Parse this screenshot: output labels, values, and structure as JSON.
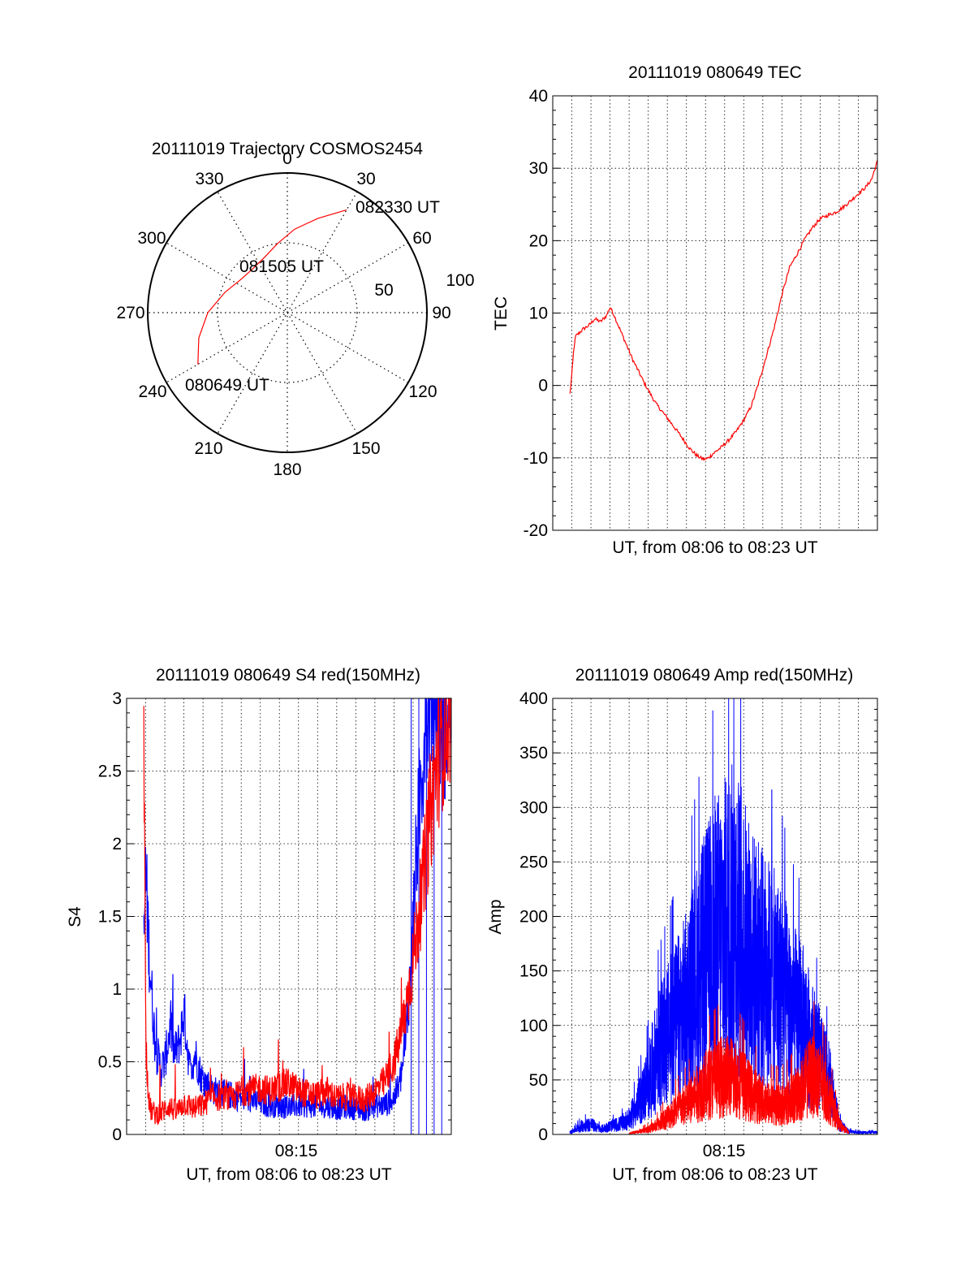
{
  "chart_data": [
    {
      "type": "polar",
      "title": "20111019 Trajectory COSMOS2454",
      "angle_labels": [
        "0",
        "30",
        "60",
        "90",
        "120",
        "150",
        "180",
        "210",
        "240",
        "270",
        "300",
        "330"
      ],
      "radial_labels": [
        "50",
        "100"
      ],
      "grid": true,
      "series": [
        {
          "color": "#ff0000",
          "points": [
            {
              "az": 240,
              "r": 74
            },
            {
              "az": 254,
              "r": 66
            },
            {
              "az": 270,
              "r": 57
            },
            {
              "az": 288,
              "r": 47
            },
            {
              "az": 305,
              "r": 41
            },
            {
              "az": 322,
              "r": 40
            },
            {
              "az": 338,
              "r": 43
            },
            {
              "az": 352,
              "r": 50
            },
            {
              "az": 5,
              "r": 60
            },
            {
              "az": 18,
              "r": 71
            },
            {
              "az": 30,
              "r": 85
            }
          ]
        }
      ],
      "annotations": [
        {
          "text": "082330 UT",
          "az": 30,
          "r": 85
        },
        {
          "text": "081505 UT",
          "az": 322,
          "r": 40
        },
        {
          "text": "080649 UT",
          "az": 240,
          "r": 74
        }
      ]
    },
    {
      "type": "line",
      "title": "20111019 080649 TEC",
      "xlabel": "UT, from 08:06 to 08:23 UT",
      "ylabel": "TEC",
      "xlim_minutes": [
        8.0,
        25.0
      ],
      "ylim": [
        -20,
        40
      ],
      "yticks": [
        -20,
        -10,
        0,
        10,
        20,
        30,
        40
      ],
      "grid": true,
      "series": [
        {
          "color": "#ff0000",
          "x_minutes": [
            8.9,
            9.0,
            9.1,
            9.2,
            9.4,
            9.6,
            9.9,
            10.2,
            10.5,
            10.8,
            11.0,
            11.2,
            11.4,
            11.8,
            12.2,
            12.8,
            13.4,
            14.0,
            14.6,
            15.2,
            15.6,
            15.9,
            16.1,
            16.4,
            16.8,
            17.2,
            17.6,
            18.0,
            18.4,
            18.8,
            19.2,
            19.6,
            20.0,
            20.4,
            20.8,
            21.2,
            21.6,
            22.0,
            22.4,
            22.8,
            23.2,
            23.6,
            24.0,
            24.4,
            24.7,
            25.0
          ],
          "values": [
            -1.2,
            1.5,
            5.0,
            6.8,
            7.3,
            7.8,
            8.3,
            9.2,
            8.8,
            9.6,
            10.8,
            9.8,
            8.5,
            6.0,
            3.5,
            0.3,
            -2.5,
            -4.5,
            -6.6,
            -8.8,
            -9.8,
            -10.2,
            -10.1,
            -9.4,
            -8.6,
            -7.6,
            -6.4,
            -4.8,
            -2.8,
            0.5,
            4.2,
            8.0,
            12.5,
            16.3,
            18.2,
            20.2,
            21.8,
            23.0,
            23.5,
            23.9,
            24.6,
            25.5,
            26.5,
            27.4,
            28.5,
            31.0
          ]
        }
      ]
    },
    {
      "type": "line",
      "title": "20111019 080649 S4 red(150MHz)",
      "xlabel": "UT, from 08:06 to 08:23 UT",
      "ylabel": "S4",
      "xtick_labels": [
        "08:15"
      ],
      "xlim_minutes": [
        8.0,
        25.0
      ],
      "ylim": [
        0,
        3
      ],
      "yticks": [
        0,
        0.5,
        1,
        1.5,
        2,
        2.5,
        3
      ],
      "grid": true,
      "series": [
        {
          "color": "#0000ff",
          "x_minutes": [
            8.9,
            9.0,
            9.2,
            9.5,
            9.8,
            10.0,
            10.3,
            10.5,
            10.8,
            11.0,
            11.3,
            11.6,
            11.9,
            12.2,
            12.6,
            13.0,
            13.5,
            14.0,
            14.5,
            15.0,
            15.5,
            16.0,
            16.5,
            17.0,
            17.5,
            18.0,
            18.5,
            19.0,
            19.5,
            20.0,
            20.5,
            21.0,
            21.5,
            22.0,
            22.3,
            22.6,
            22.9,
            23.2,
            23.5,
            23.8,
            24.2,
            24.6,
            25.0
          ],
          "values": [
            1.3,
            1.8,
            1.2,
            0.6,
            0.45,
            0.5,
            0.75,
            0.55,
            0.65,
            0.85,
            0.45,
            0.55,
            0.4,
            0.35,
            0.3,
            0.28,
            0.27,
            0.25,
            0.24,
            0.22,
            0.2,
            0.2,
            0.19,
            0.2,
            0.2,
            0.19,
            0.2,
            0.18,
            0.19,
            0.18,
            0.17,
            0.2,
            0.2,
            0.25,
            0.35,
            0.6,
            1.2,
            2.0,
            2.6,
            3.0,
            3.0,
            2.8,
            3.0
          ]
        },
        {
          "color": "#ff0000",
          "x_minutes": [
            8.9,
            9.0,
            9.2,
            9.5,
            9.8,
            10.2,
            10.6,
            11.0,
            11.5,
            12.0,
            12.5,
            13.0,
            13.5,
            14.0,
            14.5,
            15.0,
            15.5,
            16.0,
            16.5,
            17.0,
            17.5,
            18.0,
            18.5,
            19.0,
            19.5,
            20.0,
            20.5,
            21.0,
            21.5,
            22.0,
            22.3,
            22.6,
            22.9,
            23.2,
            23.5,
            23.8,
            24.2,
            24.6,
            25.0
          ],
          "values": [
            3.0,
            0.6,
            0.18,
            0.14,
            0.15,
            0.2,
            0.15,
            0.22,
            0.18,
            0.2,
            0.26,
            0.25,
            0.24,
            0.3,
            0.3,
            0.32,
            0.3,
            0.33,
            0.35,
            0.3,
            0.28,
            0.27,
            0.3,
            0.25,
            0.26,
            0.25,
            0.24,
            0.3,
            0.36,
            0.5,
            0.65,
            0.85,
            1.1,
            1.4,
            1.7,
            2.1,
            2.5,
            2.8,
            3.0
          ]
        }
      ]
    },
    {
      "type": "line",
      "title": "20111019 080649 Amp red(150MHz)",
      "xlabel": "UT, from 08:06 to 08:23 UT",
      "ylabel": "Amp",
      "xtick_labels": [
        "08:15"
      ],
      "xlim_minutes": [
        8.0,
        25.0
      ],
      "ylim": [
        0,
        400
      ],
      "yticks": [
        0,
        50,
        100,
        150,
        200,
        250,
        300,
        350,
        400
      ],
      "grid": true,
      "series": [
        {
          "color": "#0000ff",
          "x_minutes": [
            8.9,
            9.5,
            10.0,
            10.5,
            11.0,
            11.5,
            12.0,
            12.5,
            13.0,
            13.5,
            14.0,
            14.5,
            15.0,
            15.5,
            16.0,
            16.5,
            17.0,
            17.5,
            18.0,
            18.5,
            19.0,
            19.5,
            20.0,
            20.5,
            21.0,
            21.5,
            22.0,
            22.5,
            23.0,
            23.5,
            24.0,
            25.0
          ],
          "values": [
            2,
            8,
            10,
            5,
            8,
            10,
            15,
            30,
            50,
            80,
            95,
            110,
            125,
            150,
            170,
            190,
            200,
            210,
            190,
            170,
            160,
            150,
            140,
            120,
            110,
            90,
            70,
            50,
            10,
            3,
            2,
            2
          ]
        },
        {
          "color": "#ff0000",
          "x_minutes": [
            12.0,
            12.5,
            13.0,
            13.5,
            14.0,
            14.5,
            15.0,
            15.5,
            16.0,
            16.5,
            17.0,
            17.5,
            18.0,
            18.5,
            19.0,
            19.5,
            20.0,
            20.5,
            21.0,
            21.5,
            22.0,
            22.5,
            23.0,
            23.5
          ],
          "values": [
            1,
            3,
            5,
            10,
            18,
            25,
            30,
            40,
            50,
            55,
            60,
            58,
            50,
            40,
            35,
            30,
            30,
            35,
            45,
            60,
            55,
            35,
            10,
            2
          ]
        }
      ]
    }
  ]
}
